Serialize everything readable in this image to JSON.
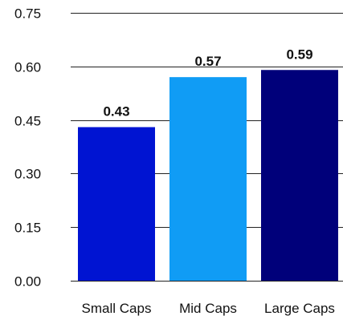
{
  "chart_data": {
    "type": "bar",
    "title": "",
    "xlabel": "",
    "ylabel": "",
    "categories": [
      "Small Caps",
      "Mid Caps",
      "Large Caps"
    ],
    "values": [
      0.43,
      0.57,
      0.59
    ],
    "data_labels": [
      "0.43",
      "0.57",
      "0.59"
    ],
    "bar_colors": [
      "#0014d2",
      "#109cf5",
      "#00007a"
    ],
    "ylim": [
      0,
      0.75
    ],
    "yticks": [
      "0.00",
      "0.15",
      "0.30",
      "0.45",
      "0.60",
      "0.75"
    ],
    "ytick_values": [
      0,
      0.15,
      0.3,
      0.45,
      0.6,
      0.75
    ],
    "grid": true,
    "legend": "none"
  }
}
